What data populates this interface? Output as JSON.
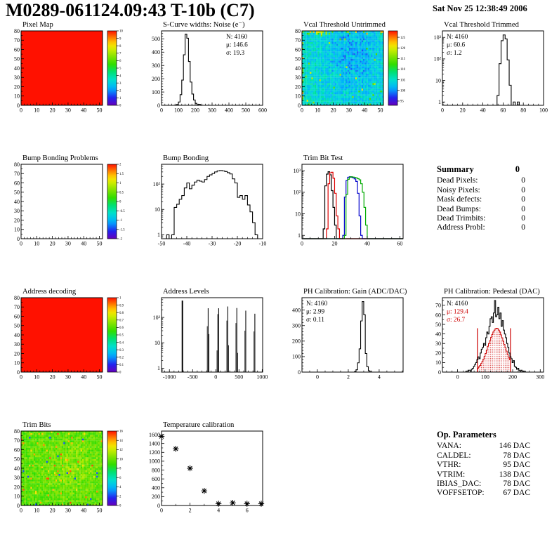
{
  "header": {
    "title": "M0289-061124.09:43 T-10b (C7)",
    "date": "Sat Nov 25 12:38:49 2006"
  },
  "summary": {
    "title": "Summary",
    "value": "0",
    "rows": [
      {
        "label": "Dead Pixels:",
        "value": "0"
      },
      {
        "label": "Noisy Pixels:",
        "value": "0"
      },
      {
        "label": "Mask defects:",
        "value": "0"
      },
      {
        "label": "Dead Bumps:",
        "value": "0"
      },
      {
        "label": "Dead Trimbits:",
        "value": "0"
      },
      {
        "label": "Address Probl:",
        "value": "0"
      }
    ]
  },
  "op_parameters": {
    "title": "Op. Parameters",
    "rows": [
      {
        "label": "VANA:",
        "value": "146 DAC"
      },
      {
        "label": "CALDEL:",
        "value": "78 DAC"
      },
      {
        "label": "VTHR:",
        "value": "95 DAC"
      },
      {
        "label": "VTRIM:",
        "value": "138 DAC"
      },
      {
        "label": "IBIAS_DAC:",
        "value": "78 DAC"
      },
      {
        "label": "VOFFSETOP:",
        "value": "67 DAC"
      }
    ]
  },
  "palette": [
    [
      0,
      "#6600bb"
    ],
    [
      0.1,
      "#2222ee"
    ],
    [
      0.22,
      "#00aaff"
    ],
    [
      0.34,
      "#00e0d0"
    ],
    [
      0.45,
      "#00e070"
    ],
    [
      0.55,
      "#30dd00"
    ],
    [
      0.65,
      "#7fe300"
    ],
    [
      0.75,
      "#cdec00"
    ],
    [
      0.82,
      "#ffe000"
    ],
    [
      0.9,
      "#ff8800"
    ],
    [
      1,
      "#ff1100"
    ]
  ],
  "chart_data": [
    {
      "id": "pixel_map",
      "type": "heatmap",
      "title": "Pixel Map",
      "fill": "solid",
      "xlim": [
        0,
        52
      ],
      "ylim": [
        0,
        80
      ],
      "xticks": [
        0,
        10,
        20,
        30,
        40,
        50
      ],
      "yticks": [
        0,
        10,
        20,
        30,
        40,
        50,
        60,
        70,
        80
      ],
      "xminor": 4,
      "yminor": 1,
      "colorbar": {
        "min": 0,
        "max": 10,
        "ticks": [
          0,
          1,
          2,
          3,
          4,
          5,
          6,
          7,
          8,
          9,
          10
        ]
      }
    },
    {
      "id": "scurve_noise",
      "type": "histogram",
      "title": "S-Curve widths: Noise (e⁻)",
      "stats": {
        "pos": "tr",
        "lines": [
          [
            "N: 4160",
            "#000000"
          ],
          [
            "μ: 146.6",
            "#000000"
          ],
          [
            "σ: 19.3",
            "#000000"
          ]
        ]
      },
      "xlim": [
        0,
        600
      ],
      "ylim": [
        0,
        560
      ],
      "xticks": [
        0,
        100,
        200,
        300,
        400,
        500,
        600
      ],
      "yticks": [
        0,
        100,
        200,
        300,
        400,
        500
      ],
      "xminor": 4,
      "yminor": 4,
      "bins": {
        "x0": 80,
        "bw": 10,
        "values": [
          2,
          6,
          25,
          80,
          190,
          380,
          535,
          505,
          330,
          175,
          85,
          40,
          15,
          5,
          8,
          2
        ]
      }
    },
    {
      "id": "vcal_untrimmed",
      "type": "heatmap",
      "title": "Vcal Threshold Untrimmed",
      "fill": "noise",
      "noise": "vcal",
      "seed": 7,
      "xlim": [
        0,
        52
      ],
      "ylim": [
        0,
        80
      ],
      "xticks": [
        0,
        10,
        20,
        30,
        40,
        50
      ],
      "yticks": [
        0,
        10,
        20,
        30,
        40,
        50,
        60,
        70,
        80
      ],
      "xminor": 4,
      "yminor": 1,
      "colorbar": {
        "min": 93,
        "max": 128,
        "ticks": [
          95,
          100,
          105,
          110,
          115,
          120,
          125
        ]
      }
    },
    {
      "id": "vcal_trimmed",
      "type": "histogram",
      "title": "Vcal Threshold Trimmed",
      "logy": true,
      "stats": {
        "pos": "tl",
        "lines": [
          [
            "N: 4160",
            "#000000"
          ],
          [
            "μ: 60.6",
            "#000000"
          ],
          [
            "σ:  1.2",
            "#000000"
          ]
        ]
      },
      "xlim": [
        0,
        100
      ],
      "ylim": [
        0.7,
        2000
      ],
      "xticks": [
        0,
        20,
        40,
        60,
        80,
        100
      ],
      "xminor": 3,
      "bins": {
        "x0": 54,
        "bw": 2,
        "values": [
          2,
          60,
          700,
          1300,
          850,
          90,
          6,
          0,
          1,
          0,
          1
        ]
      }
    },
    {
      "id": "bump_problems",
      "type": "heatmap",
      "title": "Bump Bonding Problems",
      "fill": "none",
      "xlim": [
        0,
        52
      ],
      "ylim": [
        0,
        80
      ],
      "xticks": [
        0,
        10,
        20,
        30,
        40,
        50
      ],
      "yticks": [
        0,
        10,
        20,
        30,
        40,
        50,
        60,
        70,
        80
      ],
      "xminor": 4,
      "yminor": 1,
      "colorbar": {
        "min": -2,
        "max": 2,
        "ticks": [
          -2,
          -1.5,
          -1,
          -0.5,
          0,
          0.5,
          1,
          1.5,
          2
        ]
      }
    },
    {
      "id": "bump_bonding",
      "type": "histogram",
      "title": "Bump Bonding",
      "logy": true,
      "xlim": [
        -50,
        -10
      ],
      "ylim": [
        0.7,
        600
      ],
      "xticks": [
        -50,
        -40,
        -30,
        -20,
        -10
      ],
      "xminor": 4,
      "bins": {
        "x0": -48,
        "bw": 1,
        "values": [
          1,
          0,
          1,
          12,
          16,
          25,
          35,
          70,
          110,
          65,
          90,
          120,
          140,
          130,
          120,
          150,
          200,
          230,
          260,
          300,
          330,
          340,
          330,
          310,
          280,
          250,
          160,
          110,
          30,
          35,
          25,
          35,
          15,
          8,
          3,
          1
        ]
      }
    },
    {
      "id": "trim_bit_test",
      "type": "histogram",
      "title": "Trim Bit Test",
      "logy": true,
      "xlim": [
        0,
        62
      ],
      "ylim": [
        0.7,
        2000
      ],
      "xticks": [
        0,
        20,
        40,
        60
      ],
      "xminor": 3,
      "series": [
        {
          "name": "series-1",
          "color": "#000000",
          "bins": {
            "x0": 13,
            "bw": 1,
            "values": [
              2,
              200,
              700,
              900,
              650,
              120,
              20,
              3
            ]
          }
        },
        {
          "name": "series-2",
          "color": "#dd0000",
          "bins": {
            "x0": 15,
            "bw": 1,
            "values": [
              2,
              250,
              800,
              850,
              450,
              90,
              8,
              2
            ]
          }
        },
        {
          "name": "series-3",
          "color": "#0000cc",
          "bins": {
            "x0": 25,
            "bw": 1,
            "values": [
              1,
              60,
              350,
              500,
              530,
              500,
              470,
              420,
              320,
              90,
              8,
              1
            ]
          }
        },
        {
          "name": "series-4",
          "color": "#00aa00",
          "bins": {
            "x0": 26,
            "bw": 1,
            "values": [
              1,
              80,
              400,
              500,
              530,
              510,
              490,
              470,
              430,
              380,
              250,
              100,
              20,
              3
            ]
          }
        }
      ]
    },
    {
      "id": "address_decoding",
      "type": "heatmap",
      "title": "Address decoding",
      "fill": "solid",
      "xlim": [
        0,
        52
      ],
      "ylim": [
        0,
        80
      ],
      "xticks": [
        0,
        10,
        20,
        30,
        40,
        50
      ],
      "yticks": [
        0,
        10,
        20,
        30,
        40,
        50,
        60,
        70,
        80
      ],
      "xminor": 4,
      "yminor": 1,
      "colorbar": {
        "min": 0,
        "max": 1,
        "ticks": [
          0,
          0.1,
          0.2,
          0.3,
          0.4,
          0.5,
          0.6,
          0.7,
          0.8,
          0.9,
          1
        ]
      }
    },
    {
      "id": "address_levels",
      "type": "bars",
      "title": "Address Levels",
      "logy": true,
      "xlim": [
        -1170,
        1010
      ],
      "ylim": [
        0.7,
        600
      ],
      "xticks": [
        -1000,
        -500,
        0,
        500,
        1000
      ],
      "xminor": 4,
      "bars": [
        [
          -735,
          30,
          460
        ],
        [
          -190,
          12,
          45
        ],
        [
          -173,
          16,
          230
        ],
        [
          -152,
          9,
          22
        ],
        [
          20,
          9,
          5
        ],
        [
          36,
          13,
          135
        ],
        [
          54,
          16,
          230
        ],
        [
          232,
          12,
          75
        ],
        [
          249,
          16,
          270
        ],
        [
          268,
          9,
          8
        ],
        [
          428,
          12,
          60
        ],
        [
          445,
          16,
          235
        ],
        [
          464,
          8,
          4
        ],
        [
          622,
          12,
          30
        ],
        [
          638,
          16,
          185
        ],
        [
          818,
          12,
          28
        ],
        [
          834,
          16,
          140
        ]
      ]
    },
    {
      "id": "ph_gain",
      "type": "histogram",
      "title": "PH Calibration: Gain (ADC/DAC)",
      "stats": {
        "pos": "tl",
        "lines": [
          [
            "N: 4160",
            "#000000"
          ],
          [
            "μ: 2.99",
            "#000000"
          ],
          [
            "σ: 0.11",
            "#000000"
          ]
        ]
      },
      "xlim": [
        -1,
        5.55
      ],
      "ylim": [
        0,
        480
      ],
      "xticks": [
        0,
        2,
        4
      ],
      "yticks": [
        0,
        100,
        200,
        300,
        400
      ],
      "xminor": 3,
      "yminor": 4,
      "bins": {
        "x0": 2.4,
        "bw": 0.1,
        "values": [
          4,
          15,
          60,
          150,
          330,
          455,
          370,
          120,
          35,
          8,
          2
        ]
      }
    },
    {
      "id": "ph_pedestal",
      "type": "histogram",
      "title": "PH Calibration: Pedestal (DAC)",
      "stats": {
        "pos": "tl",
        "lines": [
          [
            "N: 4160",
            "#000000"
          ],
          [
            "μ: 129.4",
            "#cc0000"
          ],
          [
            "σ: 26.7",
            "#cc0000"
          ]
        ]
      },
      "xlim": [
        -55,
        312
      ],
      "ylim": [
        0,
        78
      ],
      "xticks": [
        0,
        100,
        200,
        300
      ],
      "yticks": [
        0,
        10,
        20,
        30,
        40,
        50,
        60,
        70
      ],
      "xminor": 4,
      "yminor": 1,
      "bins": {
        "x0": 30,
        "bw": 4,
        "values": [
          1,
          1,
          2,
          2,
          1,
          3,
          4,
          6,
          8,
          10,
          13,
          16,
          14,
          20,
          24,
          26,
          30,
          28,
          36,
          42,
          40,
          48,
          56,
          58,
          52,
          62,
          75,
          58,
          60,
          68,
          56,
          62,
          48,
          54,
          44,
          40,
          36,
          30,
          26,
          20,
          16,
          14,
          10,
          12,
          6,
          5,
          3,
          4,
          2,
          1,
          2,
          1,
          1,
          1
        ]
      },
      "fit": {
        "color": "#cc0000",
        "x0": 72,
        "bw": 4,
        "values": [
          4,
          5.5,
          7,
          9,
          11,
          13.5,
          16.5,
          19.5,
          23,
          27,
          30,
          33,
          36.5,
          39.5,
          42,
          44,
          45.5,
          46,
          45.5,
          44,
          42,
          39,
          36,
          32.5,
          29,
          25.5,
          22,
          18.5,
          15.5,
          13
        ],
        "vlines": [
          [
            72,
            46
          ],
          [
            192,
            46
          ]
        ]
      }
    },
    {
      "id": "trim_bits",
      "type": "heatmap",
      "title": "Trim Bits",
      "fill": "noise",
      "noise": "trim",
      "seed": 11,
      "xlim": [
        0,
        52
      ],
      "ylim": [
        0,
        80
      ],
      "xticks": [
        0,
        10,
        20,
        30,
        40,
        50
      ],
      "yticks": [
        0,
        10,
        20,
        30,
        40,
        50,
        60,
        70,
        80
      ],
      "xminor": 4,
      "yminor": 1,
      "colorbar": {
        "min": 0,
        "max": 16,
        "ticks": [
          0,
          2,
          4,
          6,
          8,
          10,
          12,
          14,
          16
        ]
      }
    },
    {
      "id": "temp_cal",
      "type": "scatter",
      "title": "Temperature calibration",
      "xlim": [
        0,
        7.1
      ],
      "ylim": [
        0,
        1680
      ],
      "xticks": [
        0,
        2,
        4,
        6
      ],
      "yticks": [
        0,
        200,
        400,
        600,
        800,
        1000,
        1200,
        1400,
        1600
      ],
      "xminor": 1,
      "yminor": 1,
      "points": [
        [
          0,
          1560
        ],
        [
          1,
          1280
        ],
        [
          2,
          840
        ],
        [
          3,
          330
        ],
        [
          4,
          40
        ],
        [
          5,
          60
        ],
        [
          6,
          40
        ],
        [
          7,
          40
        ]
      ]
    }
  ]
}
